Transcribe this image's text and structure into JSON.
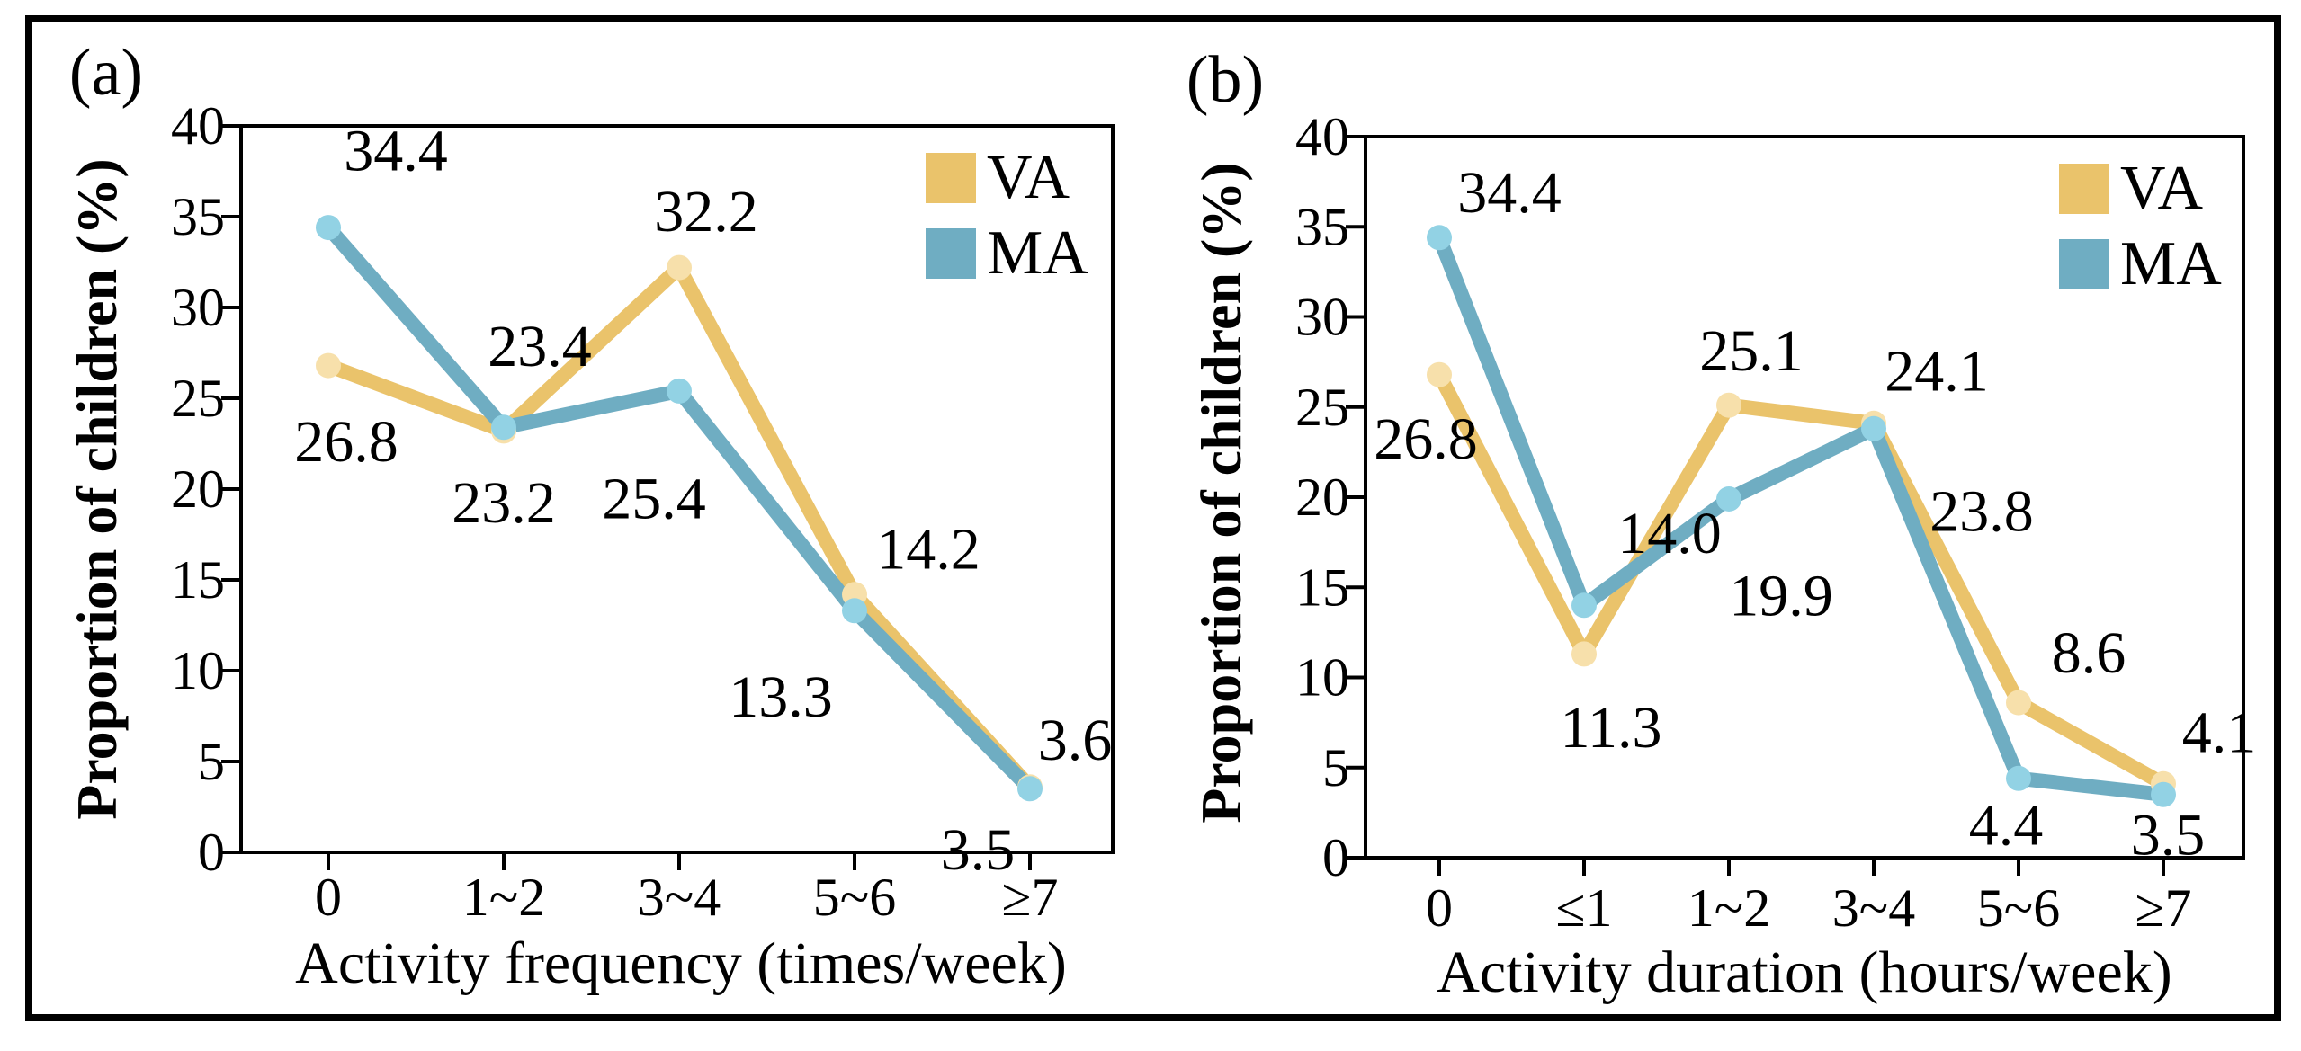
{
  "figure": {
    "background": "#ffffff",
    "border_color": "#000000"
  },
  "chart_data": [
    {
      "type": "line",
      "panel_label": "(a)",
      "xlabel": "Activity frequency (times/week)",
      "ylabel": "Proportion of children (%)",
      "categories": [
        "0",
        "1~2",
        "3~4",
        "5~6",
        "≥7"
      ],
      "ylim": [
        0,
        40
      ],
      "ytick_step": 5,
      "grid": false,
      "legend_position": "top-right",
      "series": [
        {
          "name": "VA",
          "color": "#EAC36B",
          "marker_color": "#F7E0AB",
          "values": [
            26.8,
            23.2,
            32.2,
            14.2,
            3.6
          ],
          "labels": [
            "26.8",
            "23.2",
            "32.2",
            "14.2",
            "3.6"
          ],
          "label_offsets": [
            [
              20,
              85
            ],
            [
              0,
              80
            ],
            [
              30,
              -62
            ],
            [
              82,
              -50
            ],
            [
              50,
              -52
            ]
          ]
        },
        {
          "name": "MA",
          "color": "#6FADC2",
          "marker_color": "#92D2E4",
          "values": [
            34.4,
            23.4,
            25.4,
            13.3,
            3.5
          ],
          "labels": [
            "34.4",
            "23.4",
            "25.4",
            "13.3",
            "3.5"
          ],
          "label_offsets": [
            [
              75,
              -85
            ],
            [
              40,
              -90
            ],
            [
              -28,
              120
            ],
            [
              -82,
              96
            ],
            [
              -58,
              68
            ]
          ]
        }
      ]
    },
    {
      "type": "line",
      "panel_label": "(b)",
      "xlabel": "Activity duration (hours/week)",
      "ylabel": "Proportion of children (%)",
      "categories": [
        "0",
        "≤1",
        "1~2",
        "3~4",
        "5~6",
        "≥7"
      ],
      "ylim": [
        0,
        40
      ],
      "ytick_step": 5,
      "grid": false,
      "legend_position": "top-right",
      "series": [
        {
          "name": "VA",
          "color": "#EAC36B",
          "marker_color": "#F7E0AB",
          "values": [
            26.8,
            11.3,
            25.1,
            24.1,
            8.6,
            4.1
          ],
          "labels": [
            "26.8",
            "11.3",
            "25.1",
            "24.1",
            "8.6",
            "4.1"
          ],
          "label_offsets": [
            [
              -15,
              72
            ],
            [
              30,
              82
            ],
            [
              25,
              -60
            ],
            [
              70,
              -58
            ],
            [
              78,
              -55
            ],
            [
              62,
              -57
            ]
          ]
        },
        {
          "name": "MA",
          "color": "#6FADC2",
          "marker_color": "#92D2E4",
          "values": [
            34.4,
            14.0,
            19.9,
            23.8,
            4.4,
            3.5
          ],
          "labels": [
            "34.4",
            "14.0",
            "19.9",
            "23.8",
            "4.4",
            "3.5"
          ],
          "label_offsets": [
            [
              78,
              -50
            ],
            [
              95,
              -80
            ],
            [
              58,
              108
            ],
            [
              120,
              92
            ],
            [
              -14,
              52
            ],
            [
              5,
              45
            ]
          ]
        }
      ]
    }
  ]
}
